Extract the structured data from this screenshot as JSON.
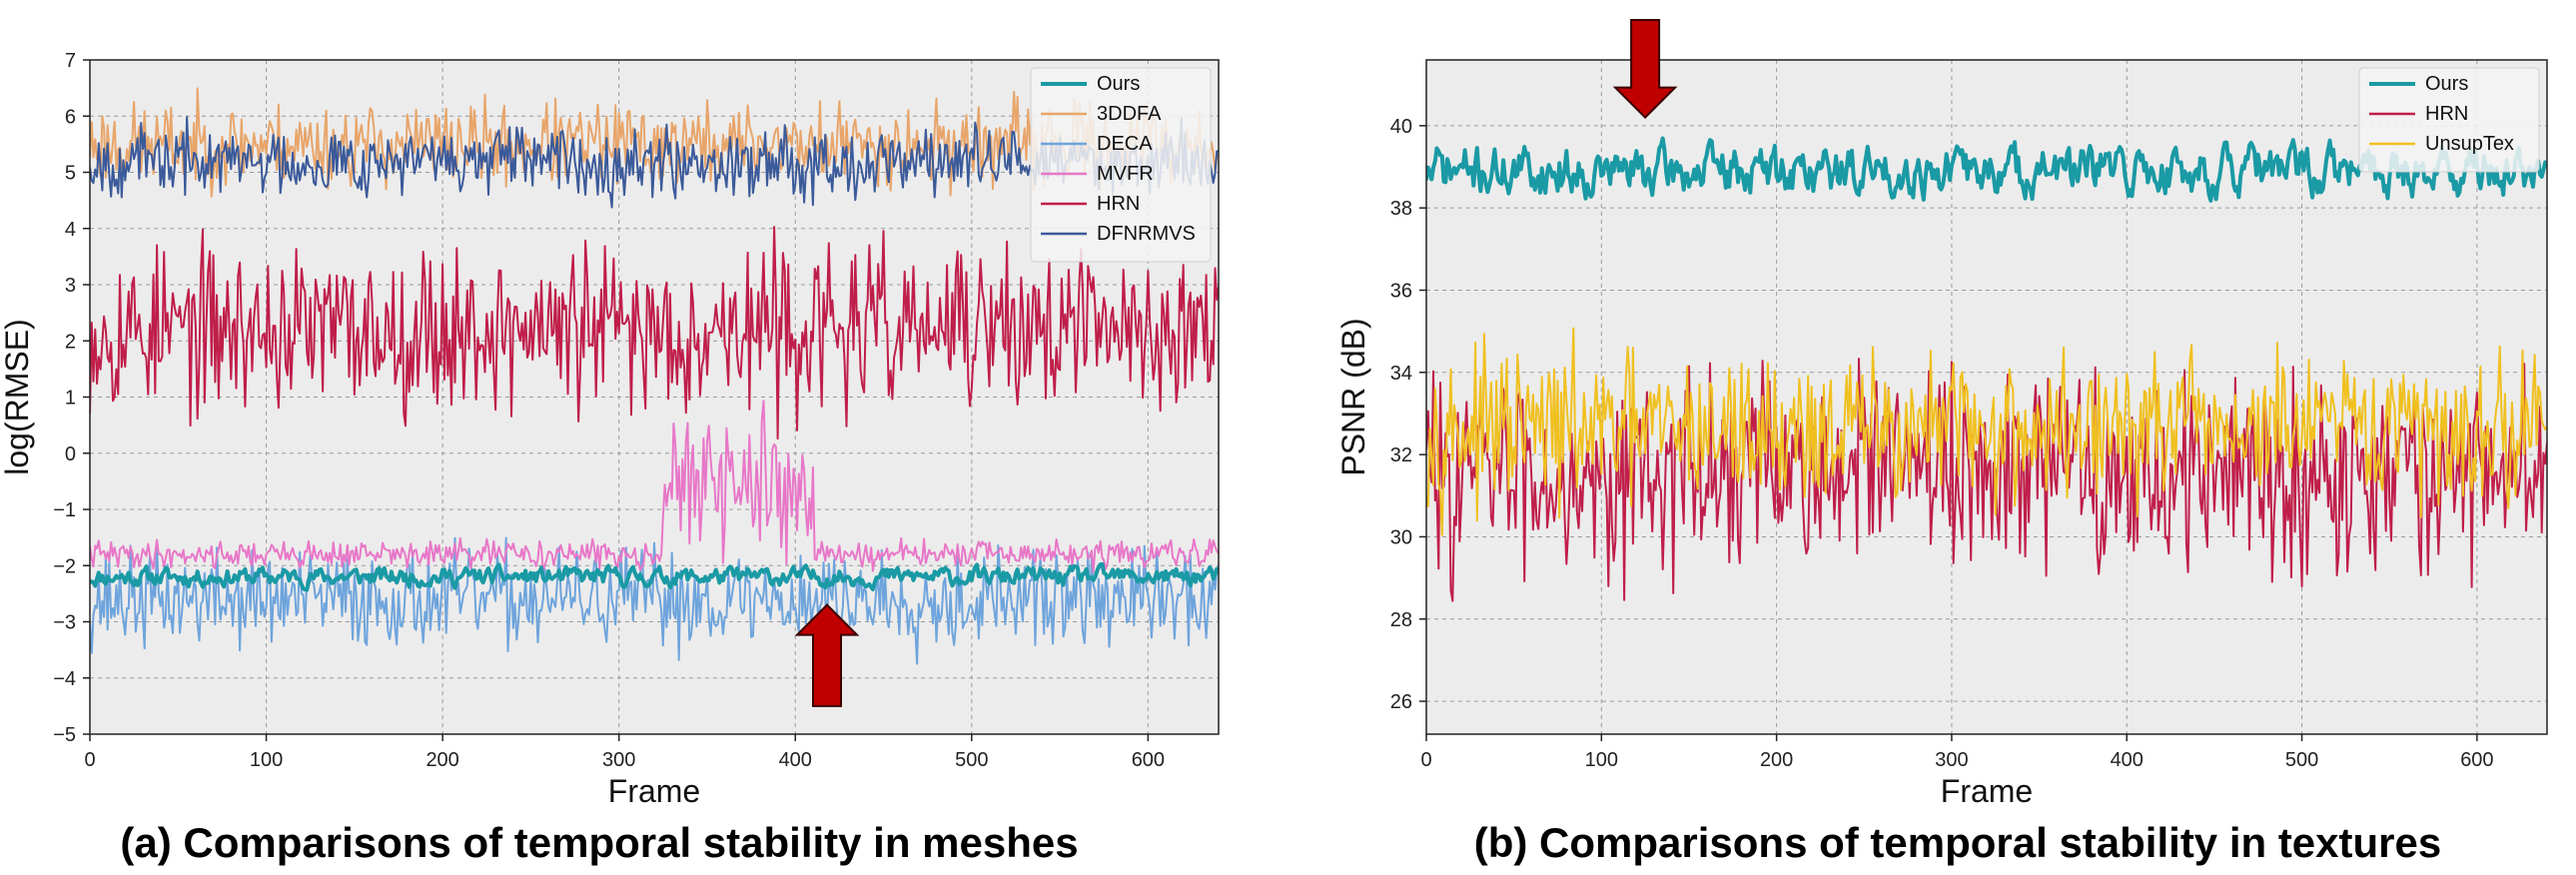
{
  "captions": {
    "a": "(a) Comparisons of temporal stability in meshes",
    "b": "(b) Comparisons of temporal stability in textures"
  },
  "chart_data": [
    {
      "type": "line",
      "xlabel": "Frame",
      "ylabel": "log(RMSE)",
      "xlim": [
        0,
        640
      ],
      "ylim": [
        -5,
        7
      ],
      "xticks": [
        0,
        100,
        200,
        300,
        400,
        500,
        600
      ],
      "yticks": [
        -5,
        -4,
        -3,
        -2,
        -1,
        0,
        1,
        2,
        3,
        4,
        5,
        6,
        7
      ],
      "grid": true,
      "legend_position": "top-right",
      "series": [
        {
          "name": "Ours",
          "color": "#1a9aa5",
          "width": 4,
          "mean": -2.2,
          "amp": 0.18,
          "seed": 11,
          "kind": "smooth"
        },
        {
          "name": "3DDFA",
          "color": "#e8a56a",
          "width": 2,
          "mean": 5.5,
          "amp": 0.55,
          "seed": 23,
          "kind": "noisy"
        },
        {
          "name": "DECA",
          "color": "#6ea4dc",
          "width": 2,
          "mean": -2.6,
          "amp": 0.65,
          "seed": 37,
          "kind": "noisy"
        },
        {
          "name": "MVFR",
          "color": "#e877c8",
          "width": 2,
          "mean": -1.8,
          "amp": 0.18,
          "seed": 41,
          "kind": "bump",
          "bump_start": 325,
          "bump_end": 410,
          "bump_mean": -0.6,
          "bump_amp": 0.9
        },
        {
          "name": "HRN",
          "color": "#c01e4a",
          "width": 2,
          "mean": 2.2,
          "amp": 1.1,
          "seed": 53,
          "kind": "noisy"
        },
        {
          "name": "DFNRMVS",
          "color": "#3b5a9a",
          "width": 2,
          "mean": 5.2,
          "amp": 0.45,
          "seed": 67,
          "kind": "noisy"
        }
      ],
      "annotation": {
        "type": "arrow-up",
        "x": 418,
        "y_tip": -2.7,
        "y_tail": -4.5,
        "color": "#c00000"
      }
    },
    {
      "type": "line",
      "xlabel": "Frame",
      "ylabel": "PSNR (dB)",
      "xlim": [
        0,
        640
      ],
      "ylim": [
        25.2,
        41.6
      ],
      "xticks": [
        0,
        100,
        200,
        300,
        400,
        500,
        600
      ],
      "yticks": [
        26,
        28,
        30,
        32,
        34,
        36,
        38,
        40
      ],
      "grid": true,
      "legend_position": "top-right",
      "series": [
        {
          "name": "Ours",
          "color": "#1a9aa5",
          "width": 4,
          "mean": 38.9,
          "amp": 0.65,
          "seed": 71,
          "kind": "smooth"
        },
        {
          "name": "HRN",
          "color": "#c01e4a",
          "width": 2,
          "mean": 31.6,
          "amp": 1.8,
          "seed": 83,
          "kind": "noisy"
        },
        {
          "name": "UnsupTex",
          "color": "#f0c020",
          "width": 2,
          "mean": 32.6,
          "amp": 1.35,
          "seed": 97,
          "kind": "noisy"
        }
      ],
      "annotation": {
        "type": "arrow-down",
        "x": 125,
        "y_tip": 40.2,
        "y_tail": 42.8,
        "color": "#c00000"
      }
    }
  ]
}
